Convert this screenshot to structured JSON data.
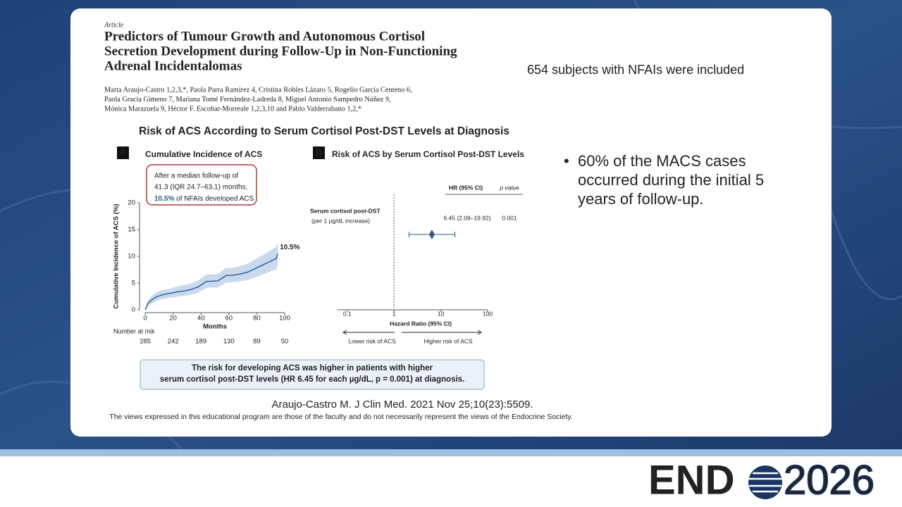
{
  "slide": {
    "right_heading": "654 subjects with NFAIs were included",
    "bullet": [
      "60% of the MACS cases",
      "occurred during the initial 5",
      "years of follow-up."
    ],
    "citation": "Araujo-Castro M. J Clin Med. 2021 Nov 25;10(23):5509.",
    "disclaimer": "The views expressed in this educational program are those of the faculty and do not necessarily represent the views of the Endocrine Society.",
    "logo": {
      "left": "END",
      "right": "2026"
    }
  },
  "article": {
    "kind": "Article",
    "title": [
      "Predictors of Tumour Growth and Autonomous Cortisol",
      "Secretion Development during Follow-Up in Non-Functioning",
      "Adrenal Incidentalomas"
    ],
    "authors": [
      "Marta Araujo-Castro 1,2,3,*, Paola Parra Ramírez 4, Cristina Robles Lázaro 5, Rogelio García Centeno 6,",
      "Paola Gracia Gimeno 7, Mariana Tomé Fernández-Ladreda 8, Miguel Antonio Sampedro Núñez 9,",
      "Mónica Marazuela 9, Héctor F. Escobar-Morreale 1,2,3,10 and Pablo Valderrabano 1,2,*"
    ]
  },
  "figure": {
    "title": "Risk of ACS According to Serum Cortisol Post-DST Levels at Diagnosis",
    "conclusion": [
      "The risk for developing ACS was higher in patients with higher",
      "serum cortisol post-DST levels (HR 6.45 for each µg/dL, p = 0.001) at diagnosis."
    ]
  },
  "chart_data": [
    {
      "type": "line",
      "panel": "A",
      "title": "Cumulative Incidence of ACS",
      "callout": [
        "After a median follow-up of",
        "41.3 (IQR 24.7–63.1) months,",
        "10.5%",
        " of NFAIs developed ACS"
      ],
      "x_label": "Months",
      "y_label": "Cumulative Incidence of ACS (%)",
      "x": [
        0,
        1,
        2,
        4,
        6,
        8,
        11,
        14,
        18,
        22,
        27,
        33,
        38,
        44,
        52,
        58,
        64,
        70,
        74,
        78,
        82,
        86,
        90,
        94,
        95
      ],
      "values": [
        0,
        0.5,
        1.2,
        1.7,
        2.1,
        2.4,
        2.7,
        2.9,
        3.1,
        3.3,
        3.5,
        3.8,
        4.3,
        5.3,
        5.4,
        6.4,
        6.5,
        6.8,
        7.1,
        7.6,
        8.1,
        8.6,
        9.1,
        9.6,
        10.5
      ],
      "band_lower": [
        0,
        0.2,
        0.7,
        1.1,
        1.4,
        1.7,
        1.9,
        2.1,
        2.3,
        2.4,
        2.6,
        2.8,
        3.2,
        4.1,
        4.2,
        5.1,
        5.2,
        5.4,
        5.6,
        6.0,
        6.4,
        6.8,
        7.2,
        7.6,
        8.3
      ],
      "band_upper": [
        0,
        0.9,
        1.8,
        2.4,
        2.9,
        3.2,
        3.6,
        3.8,
        4.0,
        4.3,
        4.6,
        4.9,
        5.5,
        6.6,
        6.7,
        7.8,
        7.9,
        8.3,
        8.7,
        9.3,
        9.9,
        10.5,
        11.1,
        11.8,
        12.8
      ],
      "color": "#2d5b8c",
      "band_color": "#c9d9ee",
      "annotations": [
        "10.5%"
      ],
      "xlim": [
        0,
        100
      ],
      "xticks": [
        0,
        20,
        40,
        60,
        80,
        100
      ],
      "ylim": [
        0,
        20
      ],
      "yticks": [
        0,
        5,
        10,
        15,
        20
      ],
      "risk_label": "Number at risk",
      "risk_values": [
        285,
        242,
        189,
        130,
        89,
        50
      ]
    },
    {
      "type": "forest",
      "panel": "B",
      "title": "Risk of ACS by Serum Cortisol Post-DST Levels",
      "columns": [
        "HR (95% CI)",
        "p value"
      ],
      "rows": [
        {
          "label": "Serum cortisol post-DST",
          "sublabel": "(per 1 µg/dL increase)",
          "hr": 6.45,
          "ci": [
            2.09,
            19.92
          ],
          "hr_label": "6.45 (2.09–19.92)",
          "p": 0.001
        }
      ],
      "x_label": "Hazard Ratio (95% CI)",
      "x_scale": "log",
      "xlim": [
        0.06,
        100
      ],
      "xticks": [
        0.1,
        1,
        10,
        100
      ],
      "reference_line": 1,
      "left_arrow": "Lower risk of ACS",
      "right_arrow": "Higher risk of ACS",
      "color": "#2d5b8c"
    }
  ]
}
